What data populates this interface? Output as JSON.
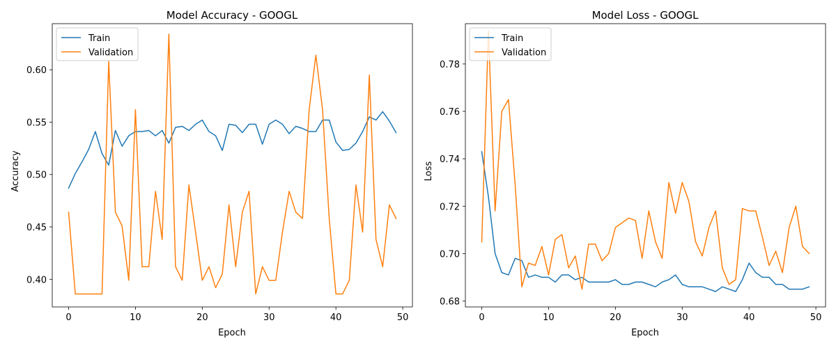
{
  "chart_data": [
    {
      "type": "line",
      "title": "Model Accuracy - GOOGL",
      "xlabel": "Epoch",
      "ylabel": "Accuracy",
      "xlim": [
        -2.45,
        51.45
      ],
      "ylim": [
        0.3736,
        0.644
      ],
      "xticks": [
        0,
        10,
        20,
        30,
        40,
        50
      ],
      "yticks": [
        0.4,
        0.45,
        0.5,
        0.55,
        0.6
      ],
      "ytick_labels": [
        "0.40",
        "0.45",
        "0.50",
        "0.55",
        "0.60"
      ],
      "legend": "top-left",
      "grid": false,
      "x": [
        0,
        1,
        2,
        3,
        4,
        5,
        6,
        7,
        8,
        9,
        10,
        11,
        12,
        13,
        14,
        15,
        16,
        17,
        18,
        19,
        20,
        21,
        22,
        23,
        24,
        25,
        26,
        27,
        28,
        29,
        30,
        31,
        32,
        33,
        34,
        35,
        36,
        37,
        38,
        39,
        40,
        41,
        42,
        43,
        44,
        45,
        46,
        47,
        48,
        49
      ],
      "series": [
        {
          "name": "Train",
          "color": "#1f77b4",
          "values": [
            0.487,
            0.501,
            0.512,
            0.524,
            0.541,
            0.52,
            0.509,
            0.542,
            0.527,
            0.537,
            0.541,
            0.541,
            0.542,
            0.537,
            0.542,
            0.53,
            0.545,
            0.546,
            0.542,
            0.548,
            0.552,
            0.541,
            0.537,
            0.523,
            0.548,
            0.547,
            0.54,
            0.548,
            0.548,
            0.529,
            0.548,
            0.552,
            0.548,
            0.539,
            0.546,
            0.544,
            0.541,
            0.541,
            0.552,
            0.552,
            0.531,
            0.523,
            0.524,
            0.53,
            0.541,
            0.555,
            0.552,
            0.56,
            0.551,
            0.54
          ]
        },
        {
          "name": "Validation",
          "color": "#ff7f0e",
          "values": [
            0.464,
            0.386,
            0.386,
            0.386,
            0.386,
            0.386,
            0.608,
            0.464,
            0.451,
            0.399,
            0.562,
            0.412,
            0.412,
            0.484,
            0.438,
            0.634,
            0.412,
            0.399,
            0.49,
            0.445,
            0.399,
            0.412,
            0.392,
            0.405,
            0.471,
            0.412,
            0.464,
            0.484,
            0.386,
            0.412,
            0.399,
            0.399,
            0.445,
            0.484,
            0.464,
            0.458,
            0.562,
            0.614,
            0.562,
            0.458,
            0.386,
            0.386,
            0.399,
            0.49,
            0.445,
            0.595,
            0.438,
            0.412,
            0.471,
            0.458
          ]
        }
      ]
    },
    {
      "type": "line",
      "title": "Model Loss - GOOGL",
      "xlabel": "Epoch",
      "ylabel": "Loss",
      "xlim": [
        -2.45,
        51.45
      ],
      "ylim": [
        0.6775,
        0.797
      ],
      "xticks": [
        0,
        10,
        20,
        30,
        40,
        50
      ],
      "yticks": [
        0.68,
        0.7,
        0.72,
        0.74,
        0.76,
        0.78
      ],
      "ytick_labels": [
        "0.68",
        "0.70",
        "0.72",
        "0.74",
        "0.76",
        "0.78"
      ],
      "legend": "top-left",
      "grid": false,
      "x": [
        0,
        1,
        2,
        3,
        4,
        5,
        6,
        7,
        8,
        9,
        10,
        11,
        12,
        13,
        14,
        15,
        16,
        17,
        18,
        19,
        20,
        21,
        22,
        23,
        24,
        25,
        26,
        27,
        28,
        29,
        30,
        31,
        32,
        33,
        34,
        35,
        36,
        37,
        38,
        39,
        40,
        41,
        42,
        43,
        44,
        45,
        46,
        47,
        48,
        49
      ],
      "series": [
        {
          "name": "Train",
          "color": "#1f77b4",
          "values": [
            0.743,
            0.724,
            0.7,
            0.692,
            0.691,
            0.698,
            0.697,
            0.69,
            0.691,
            0.69,
            0.69,
            0.688,
            0.691,
            0.691,
            0.689,
            0.69,
            0.688,
            0.688,
            0.688,
            0.688,
            0.689,
            0.687,
            0.687,
            0.688,
            0.688,
            0.687,
            0.686,
            0.688,
            0.689,
            0.691,
            0.687,
            0.686,
            0.686,
            0.686,
            0.685,
            0.684,
            0.686,
            0.685,
            0.684,
            0.689,
            0.696,
            0.692,
            0.69,
            0.69,
            0.687,
            0.687,
            0.685,
            0.685,
            0.685,
            0.686
          ]
        },
        {
          "name": "Validation",
          "color": "#ff7f0e",
          "values": [
            0.705,
            0.794,
            0.718,
            0.76,
            0.765,
            0.729,
            0.686,
            0.696,
            0.695,
            0.703,
            0.691,
            0.706,
            0.708,
            0.694,
            0.699,
            0.685,
            0.704,
            0.704,
            0.697,
            0.7,
            0.711,
            0.713,
            0.715,
            0.714,
            0.698,
            0.718,
            0.705,
            0.698,
            0.73,
            0.717,
            0.73,
            0.722,
            0.705,
            0.699,
            0.711,
            0.718,
            0.694,
            0.687,
            0.689,
            0.719,
            0.718,
            0.718,
            0.707,
            0.695,
            0.701,
            0.692,
            0.711,
            0.72,
            0.703,
            0.7
          ]
        }
      ]
    }
  ]
}
